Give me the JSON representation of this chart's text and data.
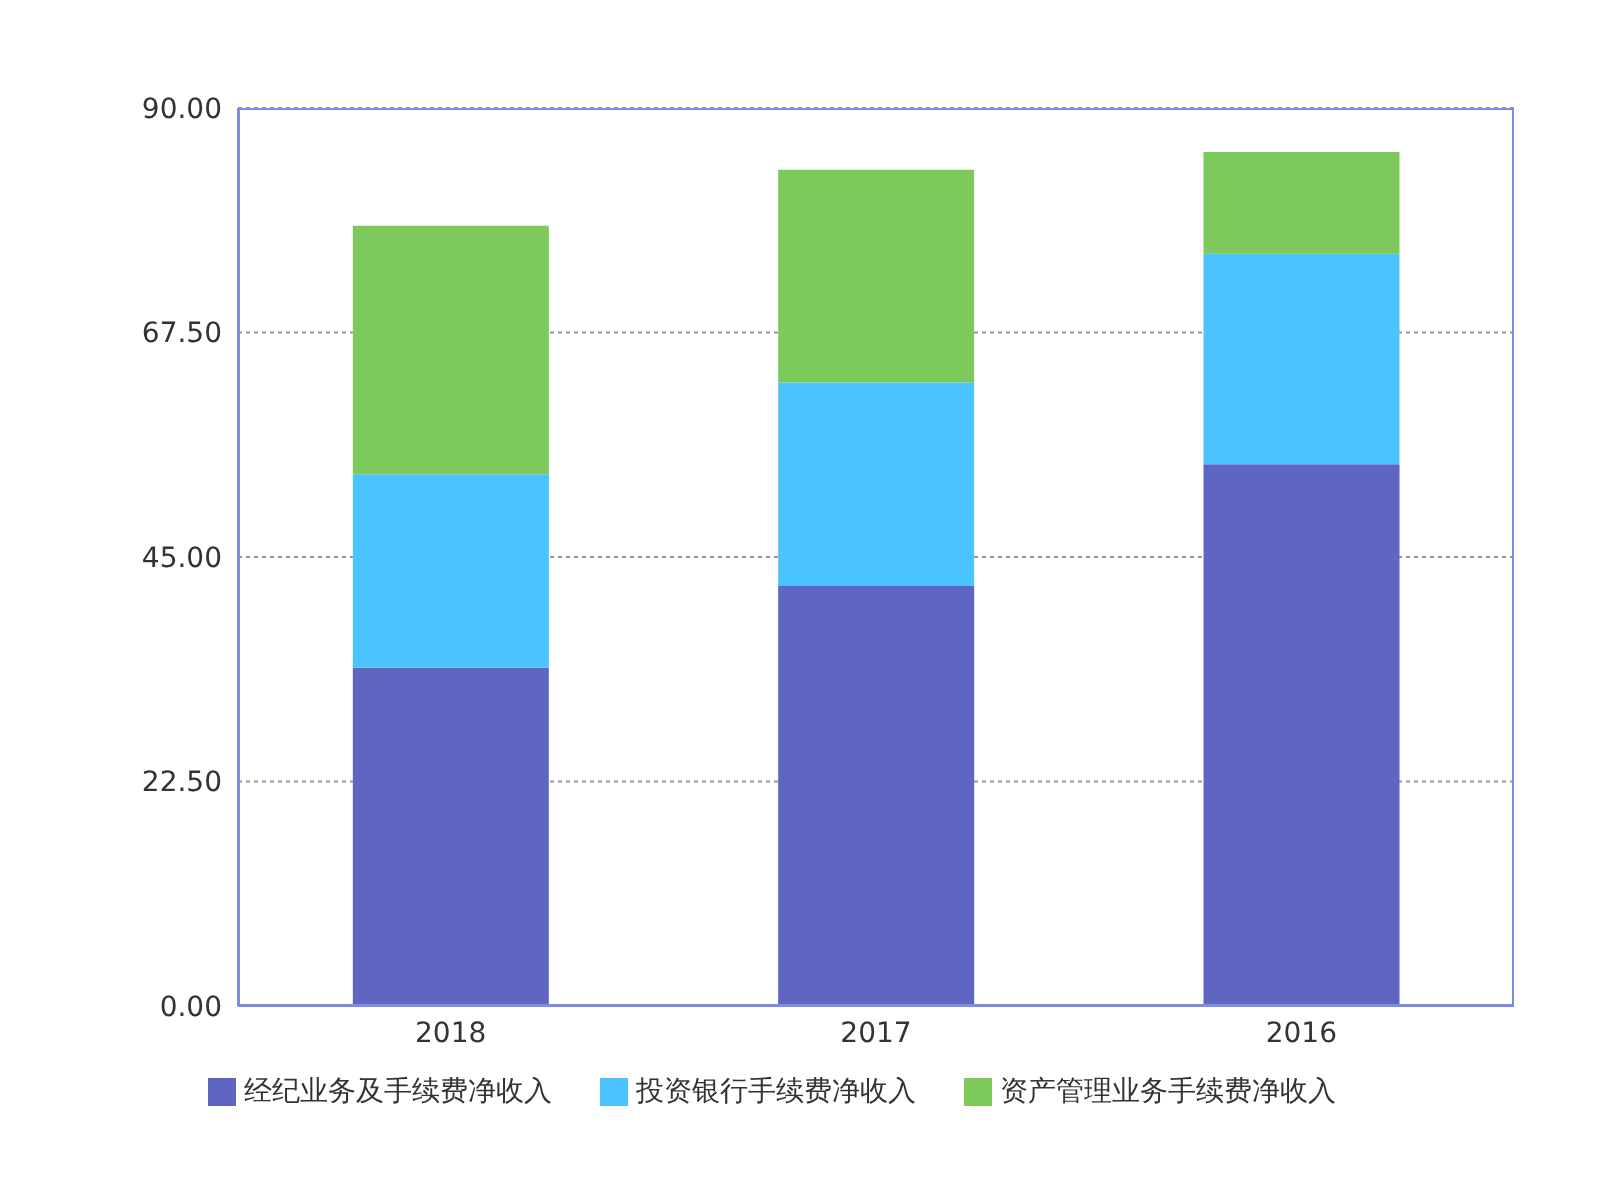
{
  "chart_data": {
    "type": "bar",
    "stacked": true,
    "categories": [
      "2018",
      "2017",
      "2016"
    ],
    "series": [
      {
        "name": "经纪业务及手续费净收入",
        "color": "#5f66c1",
        "values": [
          33.9,
          42.1,
          54.3
        ]
      },
      {
        "name": "投资银行手续费净收入",
        "color": "#4bc3fe",
        "values": [
          19.4,
          20.4,
          21.1
        ]
      },
      {
        "name": "资产管理业务手续费净收入",
        "color": "#7ec95c",
        "values": [
          24.9,
          21.3,
          10.2
        ]
      }
    ],
    "ylim": [
      0,
      90
    ],
    "yticks": [
      {
        "value": 0,
        "label": "0.00"
      },
      {
        "value": 22.5,
        "label": "22.50"
      },
      {
        "value": 45,
        "label": "45.00"
      },
      {
        "value": 67.5,
        "label": "67.50"
      },
      {
        "value": 90,
        "label": "90.00"
      }
    ],
    "grid": "y",
    "legend": "bottom"
  }
}
